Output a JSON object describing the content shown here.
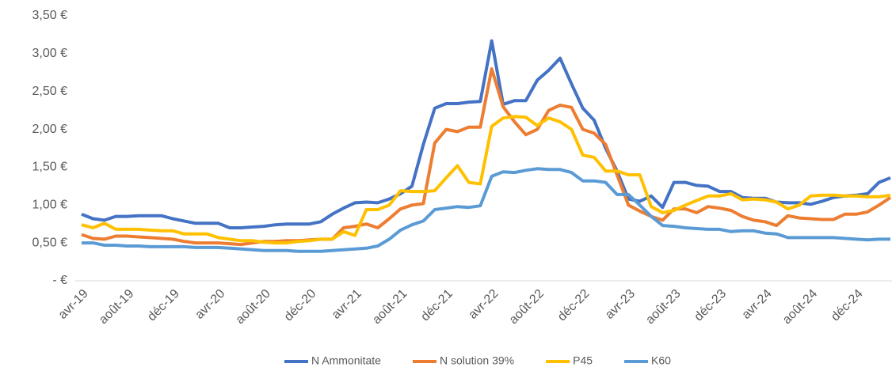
{
  "chart_data": {
    "type": "line",
    "categories": [
      "avr-19",
      null,
      null,
      null,
      "août-19",
      null,
      null,
      null,
      "déc-19",
      null,
      null,
      null,
      "avr-20",
      null,
      null,
      null,
      "août-20",
      null,
      null,
      null,
      "déc-20",
      null,
      null,
      null,
      "avr-21",
      null,
      null,
      null,
      "août-21",
      null,
      null,
      null,
      "déc-21",
      null,
      null,
      null,
      "avr-22",
      null,
      null,
      null,
      "août-22",
      null,
      null,
      null,
      "déc-22",
      null,
      null,
      null,
      "avr-23",
      null,
      null,
      null,
      "août-23",
      null,
      null,
      null,
      "déc-23",
      null,
      null,
      null,
      "avr-24",
      null,
      null,
      null,
      "août-24",
      null,
      null,
      null,
      "déc-24",
      null,
      null,
      null
    ],
    "series": [
      {
        "name": "N Ammonitate",
        "color": "#4472c4",
        "values": [
          0.88,
          0.82,
          0.8,
          0.85,
          0.85,
          0.86,
          0.86,
          0.86,
          0.82,
          0.79,
          0.76,
          0.76,
          0.76,
          0.7,
          0.7,
          0.71,
          0.72,
          0.74,
          0.75,
          0.75,
          0.75,
          0.78,
          0.88,
          0.96,
          1.03,
          1.04,
          1.03,
          1.08,
          1.15,
          1.25,
          1.8,
          2.28,
          2.34,
          2.34,
          2.36,
          2.37,
          3.17,
          2.33,
          2.38,
          2.38,
          2.65,
          2.78,
          2.94,
          2.6,
          2.28,
          2.12,
          1.75,
          1.45,
          1.08,
          1.05,
          1.12,
          0.97,
          1.3,
          1.3,
          1.26,
          1.25,
          1.18,
          1.18,
          1.1,
          1.09,
          1.09,
          1.04,
          1.03,
          1.03,
          1.01,
          1.05,
          1.1,
          1.12,
          1.13,
          1.15,
          1.3,
          1.36
        ]
      },
      {
        "name": "N solution 39%",
        "color": "#ed7d31",
        "values": [
          0.61,
          0.56,
          0.55,
          0.59,
          0.59,
          0.58,
          0.57,
          0.56,
          0.55,
          0.52,
          0.5,
          0.5,
          0.5,
          0.49,
          0.48,
          0.5,
          0.52,
          0.52,
          0.53,
          0.53,
          0.54,
          0.55,
          0.55,
          0.7,
          0.72,
          0.75,
          0.7,
          0.82,
          0.95,
          1.0,
          1.02,
          1.82,
          2.0,
          1.97,
          2.03,
          2.03,
          2.8,
          2.3,
          2.1,
          1.93,
          2.0,
          2.25,
          2.32,
          2.29,
          2.0,
          1.95,
          1.8,
          1.4,
          1.0,
          0.92,
          0.85,
          0.8,
          0.95,
          0.95,
          0.9,
          0.98,
          0.96,
          0.93,
          0.85,
          0.8,
          0.78,
          0.73,
          0.86,
          0.83,
          0.82,
          0.81,
          0.81,
          0.88,
          0.88,
          0.91,
          1.0,
          1.1
        ]
      },
      {
        "name": "P45",
        "color": "#ffc000",
        "values": [
          0.74,
          0.7,
          0.76,
          0.68,
          0.68,
          0.68,
          0.67,
          0.66,
          0.66,
          0.62,
          0.62,
          0.62,
          0.57,
          0.55,
          0.53,
          0.53,
          0.51,
          0.5,
          0.5,
          0.52,
          0.53,
          0.55,
          0.55,
          0.65,
          0.6,
          0.94,
          0.94,
          1.0,
          1.19,
          1.18,
          1.18,
          1.19,
          1.36,
          1.52,
          1.3,
          1.28,
          2.04,
          2.15,
          2.17,
          2.16,
          2.05,
          2.15,
          2.1,
          2.0,
          1.66,
          1.63,
          1.45,
          1.45,
          1.4,
          1.4,
          0.98,
          0.9,
          0.93,
          1.0,
          1.06,
          1.12,
          1.12,
          1.15,
          1.07,
          1.08,
          1.07,
          1.04,
          0.95,
          1.0,
          1.12,
          1.13,
          1.13,
          1.12,
          1.12,
          1.11,
          1.11,
          1.13
        ]
      },
      {
        "name": "K60",
        "color": "#5b9bd5",
        "values": [
          0.5,
          0.5,
          0.47,
          0.47,
          0.46,
          0.46,
          0.45,
          0.45,
          0.45,
          0.45,
          0.44,
          0.44,
          0.44,
          0.43,
          0.42,
          0.41,
          0.4,
          0.4,
          0.4,
          0.39,
          0.39,
          0.39,
          0.4,
          0.41,
          0.42,
          0.43,
          0.46,
          0.55,
          0.67,
          0.74,
          0.79,
          0.94,
          0.96,
          0.98,
          0.97,
          0.99,
          1.38,
          1.44,
          1.43,
          1.46,
          1.48,
          1.47,
          1.47,
          1.43,
          1.32,
          1.32,
          1.3,
          1.14,
          1.14,
          1.0,
          0.85,
          0.73,
          0.72,
          0.7,
          0.69,
          0.68,
          0.68,
          0.65,
          0.66,
          0.66,
          0.63,
          0.62,
          0.57,
          0.57,
          0.57,
          0.57,
          0.57,
          0.56,
          0.55,
          0.54,
          0.55,
          0.55
        ]
      }
    ],
    "ylim": [
      0,
      3.5
    ],
    "yticks": [
      {
        "value": 0,
        "label": "- €"
      },
      {
        "value": 0.5,
        "label": "0,50 €"
      },
      {
        "value": 1,
        "label": "1,00 €"
      },
      {
        "value": 1.5,
        "label": "1,50 €"
      },
      {
        "value": 2,
        "label": "2,00 €"
      },
      {
        "value": 2.5,
        "label": "2,50 €"
      },
      {
        "value": 3,
        "label": "3,00 €"
      },
      {
        "value": 3.5,
        "label": "3,50 €"
      }
    ],
    "grid": false,
    "legend": "bottom"
  }
}
